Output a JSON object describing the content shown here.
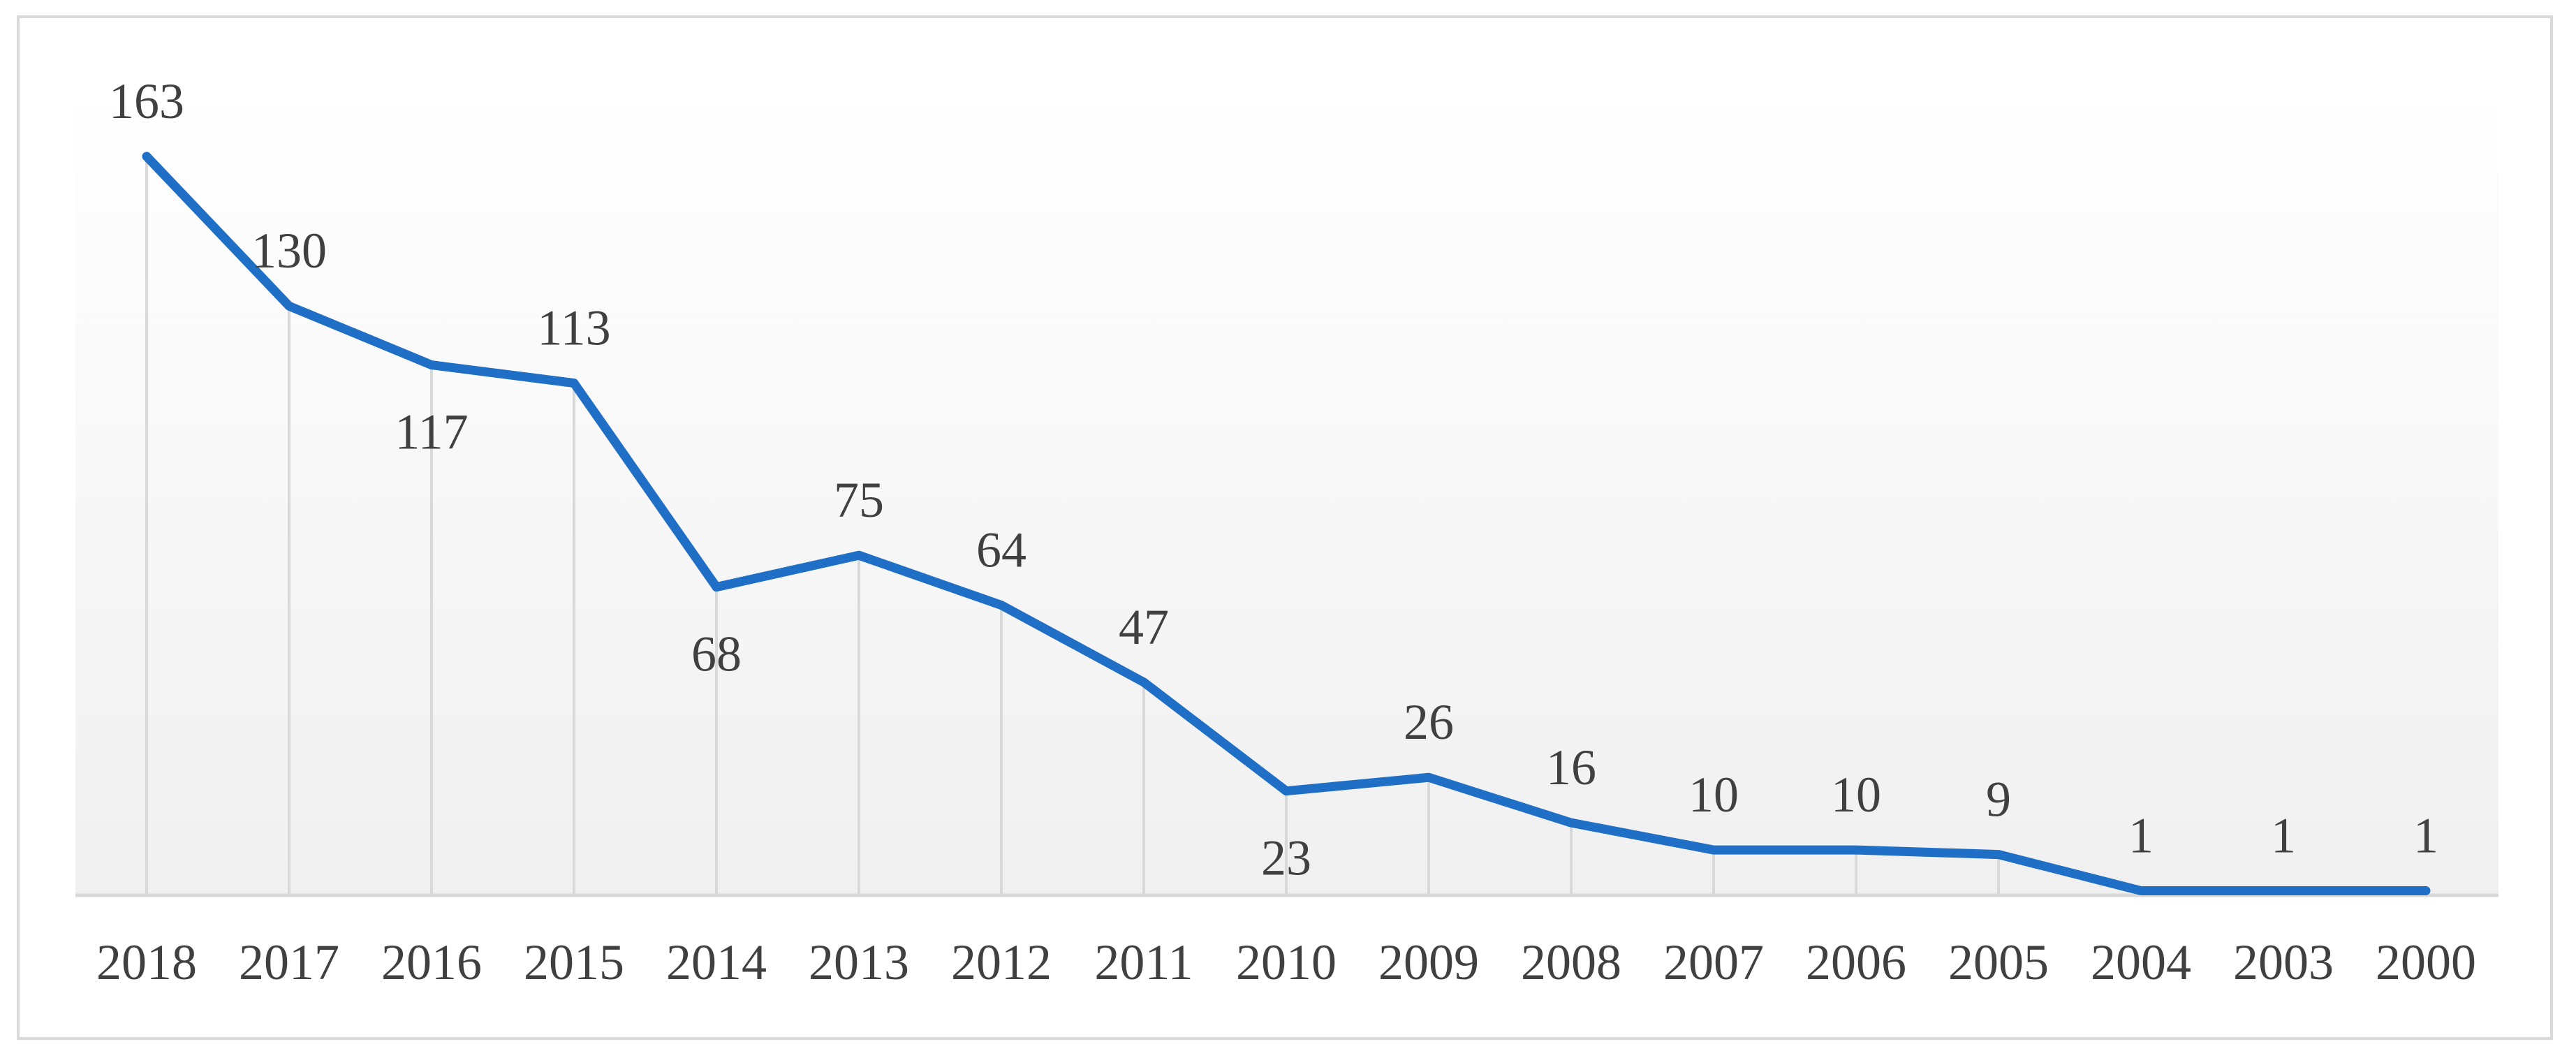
{
  "chart_data": {
    "type": "line",
    "categories": [
      "2018",
      "2017",
      "2016",
      "2015",
      "2014",
      "2013",
      "2012",
      "2011",
      "2010",
      "2009",
      "2008",
      "2007",
      "2006",
      "2005",
      "2004",
      "2003",
      "2000"
    ],
    "series": [
      {
        "values": [
          163,
          130,
          117,
          113,
          68,
          75,
          64,
          47,
          23,
          26,
          16,
          10,
          10,
          9,
          1,
          1,
          1
        ]
      }
    ],
    "ylim": [
      0,
      163
    ],
    "title": "",
    "xlabel": "",
    "ylabel": "",
    "grid": "vertical drop lines at each category",
    "legend": "none",
    "colors": {
      "line": "#1f6fc6",
      "gridline": "#d9d9d9",
      "axis": "#d9d9d9",
      "text": "#404040"
    }
  }
}
